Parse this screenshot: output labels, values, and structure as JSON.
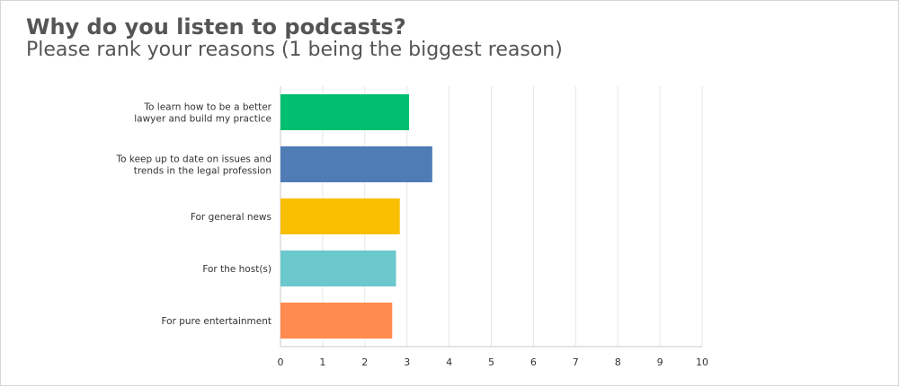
{
  "chart_data": {
    "type": "bar",
    "orientation": "horizontal",
    "title": "Why do you listen to podcasts?",
    "subtitle": "Please rank your reasons (1 being the biggest reason)",
    "categories": [
      [
        "To learn how to be a better",
        "lawyer and build my practice"
      ],
      [
        "To keep up to date on issues and",
        "trends in the legal profession"
      ],
      [
        "For general news"
      ],
      [
        "For the host(s)"
      ],
      [
        "For pure entertainment"
      ]
    ],
    "values": [
      3.05,
      3.6,
      2.83,
      2.74,
      2.65
    ],
    "colors": [
      "#00bf6f",
      "#507cb6",
      "#f9be00",
      "#6bc8cd",
      "#ff8b4f"
    ],
    "xlim": [
      0,
      10
    ],
    "xticks": [
      "0",
      "1",
      "2",
      "3",
      "4",
      "5",
      "6",
      "7",
      "8",
      "9",
      "10"
    ],
    "grid": true,
    "legend": "none"
  }
}
